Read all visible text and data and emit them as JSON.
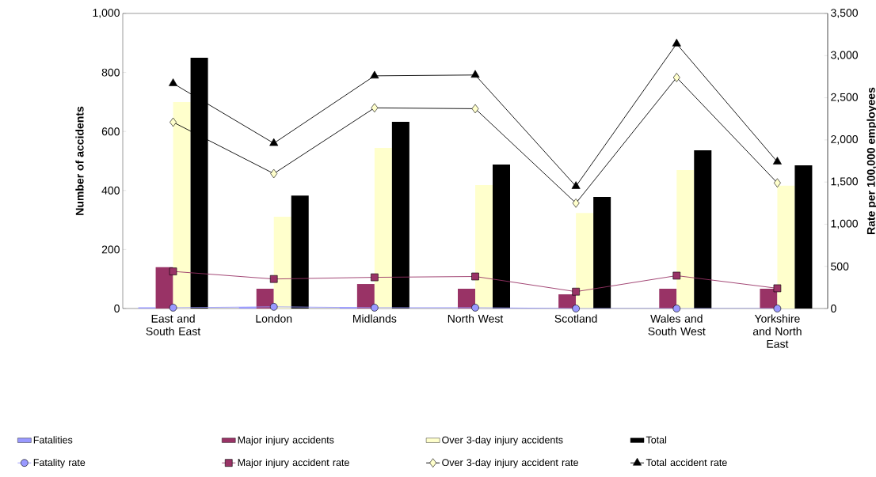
{
  "chart_data": {
    "type": "bar",
    "ylabel": "Number of accidents",
    "y2label": "Rate per 100,000 employees",
    "categories": [
      "East and South East",
      "London",
      "Midlands",
      "North West",
      "Scotland",
      "Wales and South West",
      "Yorkshire and North East"
    ],
    "series": [
      {
        "name": "Fatalities",
        "color": "#9999ff",
        "values": [
          4,
          5,
          4,
          null,
          null,
          null,
          null
        ]
      },
      {
        "name": "Major injury accidents",
        "color": "#993366",
        "values": [
          140,
          67,
          83,
          67,
          48,
          67,
          67
        ]
      },
      {
        "name": "Over 3-day injury accidents",
        "color": "#ffffcc",
        "values": [
          700,
          311,
          544,
          418,
          324,
          469,
          416
        ]
      },
      {
        "name": "Total",
        "color": "#000000",
        "values": [
          850,
          383,
          633,
          488,
          378,
          536,
          485
        ]
      },
      {
        "name": "Fatality rate",
        "type": "line",
        "axis": "y2",
        "marker": "circle",
        "color": "#9999ff",
        "values": [
          10,
          20,
          10,
          10,
          0,
          0,
          0
        ]
      },
      {
        "name": "Major injury accident rate",
        "type": "line",
        "axis": "y2",
        "marker": "square",
        "color": "#993366",
        "values": [
          440,
          350,
          370,
          380,
          200,
          390,
          240
        ]
      },
      {
        "name": "Over 3-day injury accident rate",
        "type": "line",
        "axis": "y2",
        "marker": "diamond",
        "color": "#000000",
        "values": [
          2210,
          1600,
          2380,
          2370,
          1250,
          2740,
          1490
        ]
      },
      {
        "name": "Total accident rate",
        "type": "line",
        "axis": "y2",
        "marker": "triangle",
        "color": "#000000",
        "values": [
          2670,
          1960,
          2760,
          2770,
          1450,
          3140,
          1740
        ]
      }
    ],
    "ylim": [
      0,
      1000
    ],
    "yticks": [
      0,
      200,
      400,
      600,
      800,
      {
        "value": 1000,
        "label": "1,000"
      }
    ],
    "y2lim": [
      0,
      3500
    ],
    "y2ticks": [
      0,
      500,
      {
        "value": 1000,
        "label": "1,000"
      },
      {
        "value": 1500,
        "label": "1,500"
      },
      {
        "value": 2000,
        "label": "2,000"
      },
      {
        "value": 2500,
        "label": "2,500"
      },
      {
        "value": 3000,
        "label": "3,000"
      },
      {
        "value": 3500,
        "label": "3,500"
      }
    ],
    "legend": "bottom"
  }
}
